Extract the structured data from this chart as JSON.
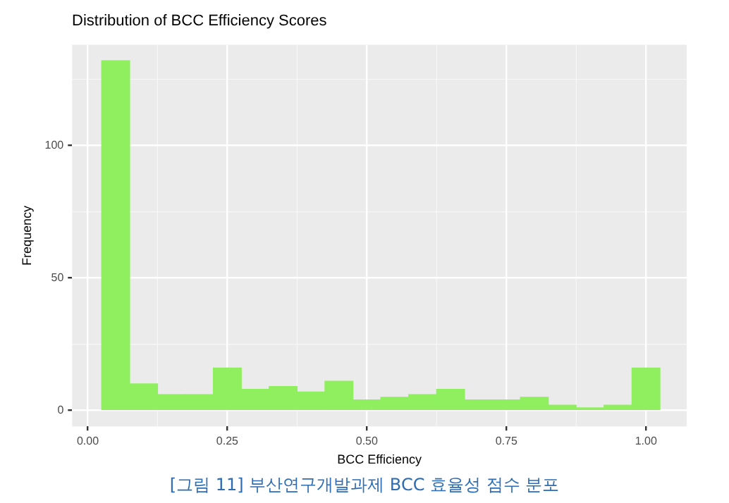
{
  "chart_data": {
    "type": "histogram",
    "title": "Distribution of BCC Efficiency Scores",
    "xlabel": "BCC Efficiency",
    "ylabel": "Frequency",
    "bins": [
      0.025,
      0.075,
      0.125,
      0.175,
      0.225,
      0.275,
      0.325,
      0.375,
      0.425,
      0.475,
      0.525,
      0.575,
      0.625,
      0.675,
      0.725,
      0.775,
      0.825,
      0.875,
      0.925,
      0.975,
      1.025
    ],
    "values": [
      132,
      10,
      6,
      6,
      16,
      8,
      9,
      7,
      11,
      4,
      5,
      6,
      8,
      4,
      4,
      5,
      2,
      1,
      2,
      16
    ],
    "color": "#8fef5f",
    "xlim": [
      -0.028,
      1.073
    ],
    "xticks": [
      {
        "value": 0,
        "label": "0.00"
      },
      {
        "value": 0.25,
        "label": "0.25"
      },
      {
        "value": 0.5,
        "label": "0.50"
      },
      {
        "value": 0.75,
        "label": "0.75"
      },
      {
        "value": 1,
        "label": "1.00"
      }
    ],
    "ylim": [
      -6,
      138
    ],
    "yticks": [
      0,
      50,
      100
    ],
    "grid": true,
    "legend": false,
    "annotations": [
      "[그림 11] 부산연구개발과제 BCC 효율성 점수 분포"
    ]
  }
}
